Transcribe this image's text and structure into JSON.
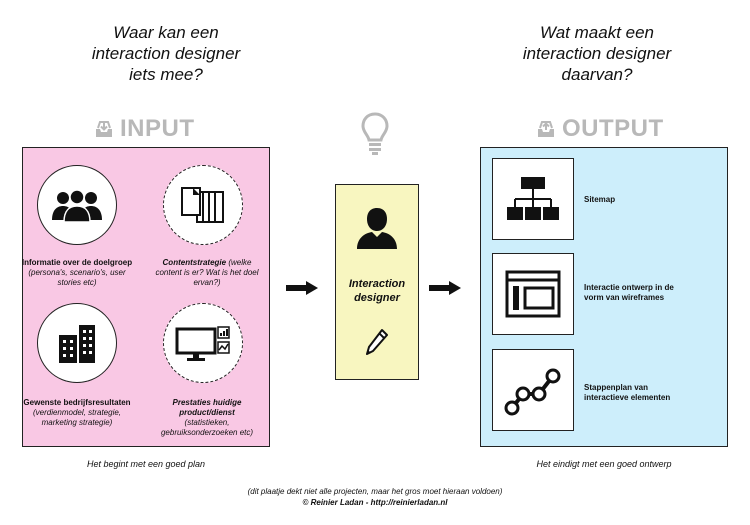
{
  "left_question": [
    "Waar kan een",
    "interaction designer",
    "iets mee?"
  ],
  "right_question": [
    "Wat maakt een",
    "interaction designer",
    "daarvan?"
  ],
  "input_title": "INPUT",
  "output_title": "OUTPUT",
  "input_items": [
    {
      "icon": "group-icon",
      "title": "Informatie over de doelgroep",
      "detail": "(persona's, scenario's, user stories etc)"
    },
    {
      "icon": "documents-icon",
      "title": "Contentstrategie",
      "detail": "(welke content is er? Wat is het doel ervan?)"
    },
    {
      "icon": "buildings-icon",
      "title": "Gewenste bedrijfsresultaten",
      "detail": "(verdienmodel, strategie, marketing strategie)"
    },
    {
      "icon": "monitor-chart-icon",
      "title": "Prestaties huidige product/dienst",
      "detail": "(statistieken, gebruiksonderzoeken etc)"
    }
  ],
  "center_label": "Interaction designer",
  "output_items": [
    {
      "icon": "sitemap-icon",
      "label": "Sitemap"
    },
    {
      "icon": "wireframe-icon",
      "label": "Interactie ontwerp in de vorm van wireframes"
    },
    {
      "icon": "steps-icon",
      "label": "Stappenplan van interactieve elementen"
    }
  ],
  "input_caption": "Het begint met een goed plan",
  "output_caption": "Het eindigt met een goed ontwerp",
  "disclaimer": "(dit plaatje dekt niet alle projecten, maar het gros moet hieraan voldoen)",
  "credit": "© Reinier Ladan - http://reinierladan.nl",
  "colors": {
    "input_panel": "#f9c8e4",
    "output_panel": "#cdeefb",
    "center_box": "#f8f6c0",
    "title_grey": "#b8b8b8"
  }
}
